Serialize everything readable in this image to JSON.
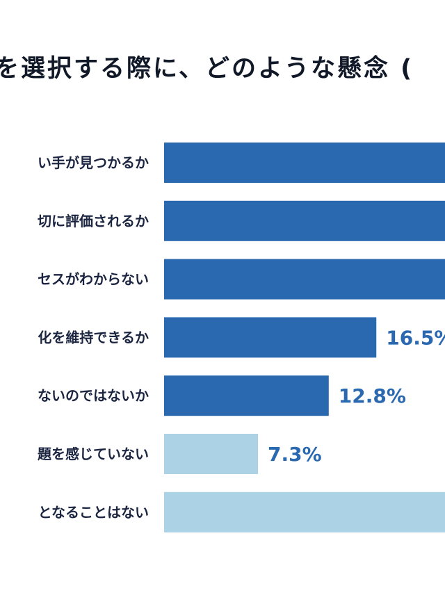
{
  "title": "を選択する際に、どのような懸念 (",
  "colors": {
    "dark": "#2a68b0",
    "light": "#acd2e6",
    "value_text": "#2a68b0"
  },
  "chart_data": {
    "type": "bar",
    "orientation": "horizontal",
    "categories": [
      "い手が見つかるか",
      "切に評価されるか",
      "セスがわからない",
      "化を維持できるか",
      "ないのではないか",
      "題を感じていない",
      "となることはない"
    ],
    "values": [
      null,
      null,
      null,
      16.5,
      12.8,
      7.3,
      null
    ],
    "value_labels": [
      "",
      "",
      "",
      "16.5%",
      "12.8%",
      "7.3%",
      ""
    ],
    "bar_styles": [
      "dark",
      "dark",
      "dark",
      "dark",
      "dark",
      "light",
      "light"
    ],
    "xlim": [
      0,
      35
    ],
    "title": "を選択する際に、どのような懸念 (",
    "xlabel": "",
    "ylabel": "",
    "grid": false,
    "legend": "none"
  }
}
